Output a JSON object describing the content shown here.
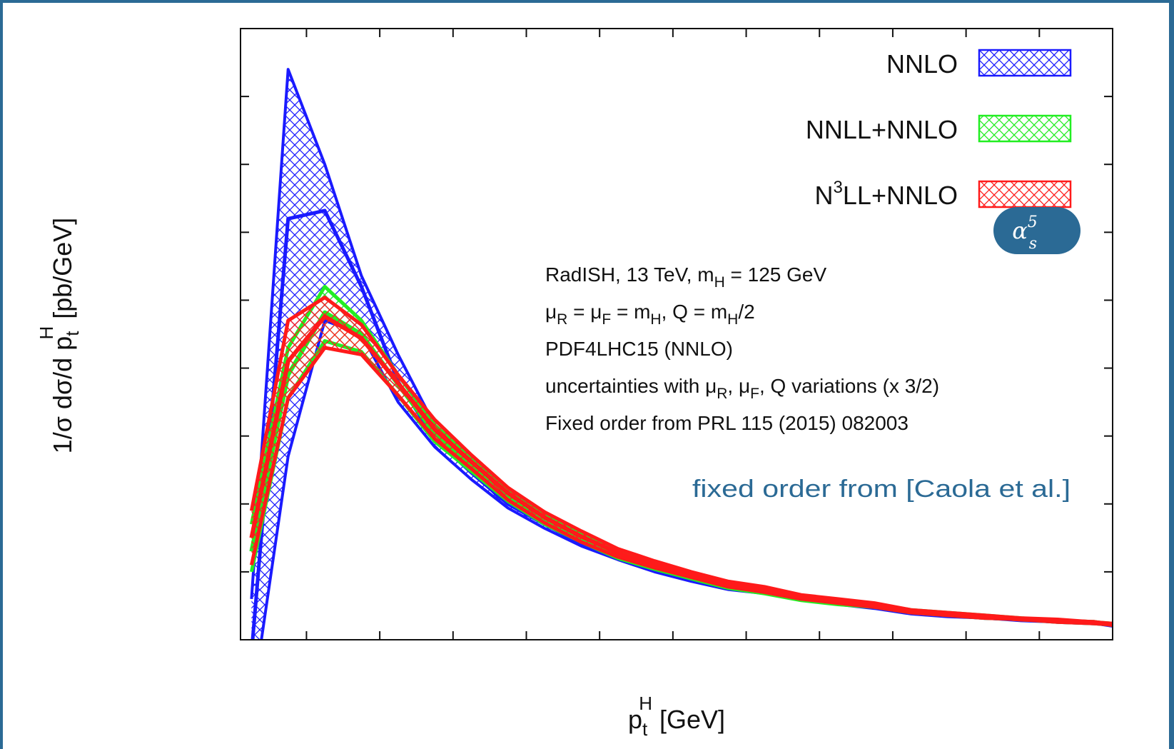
{
  "chart_data": {
    "type": "line",
    "xlabel": {
      "main": "p",
      "sub": "t",
      "sup": "H",
      "rest": " [GeV]"
    },
    "ylabel": {
      "main": "1/σ dσ/d p",
      "sub": "t",
      "sup": "H",
      "rest": " [pb/GeV]"
    },
    "xlim": [
      1,
      120
    ],
    "ylim": [
      0,
      0.045
    ],
    "xticks": [
      "10",
      "20",
      "30",
      "40",
      "50",
      "60",
      "70",
      "80",
      "90",
      "100",
      "110",
      "120"
    ],
    "yticks": [
      "0",
      "0.005",
      "0.01",
      "0.015",
      "0.02",
      "0.025",
      "0.03",
      "0.035",
      "0.04",
      "0.045"
    ],
    "legend_position": "top-right",
    "series": [
      {
        "name": "NNLO",
        "color": "#1a1aff",
        "x": [
          2.5,
          7.5,
          12.5,
          17.5,
          22.5,
          27.5,
          32.5,
          37.5,
          42.5,
          47.5,
          52.5,
          57.5,
          62.5,
          67.5,
          72.5,
          77.5,
          82.5,
          87.5,
          92.5,
          97.5,
          102.5,
          107.5,
          112.5,
          117.5,
          120
        ],
        "upper": [
          0.003,
          0.042,
          0.035,
          0.0268,
          0.021,
          0.0158,
          0.0128,
          0.0103,
          0.0088,
          0.0074,
          0.0063,
          0.0054,
          0.0047,
          0.004,
          0.0037,
          0.0031,
          0.0028,
          0.0025,
          0.0021,
          0.0019,
          0.0017,
          0.0015,
          0.0014,
          0.0012,
          0.0011
        ],
        "central": [
          -0.001,
          0.031,
          0.0316,
          0.026,
          0.019,
          0.0148,
          0.0123,
          0.01,
          0.0085,
          0.0071,
          0.0061,
          0.0052,
          0.0045,
          0.0038,
          0.0035,
          0.003,
          0.0027,
          0.0024,
          0.002,
          0.0018,
          0.0016,
          0.0015,
          0.0013,
          0.0012,
          0.0011
        ],
        "lower": [
          -0.005,
          0.0135,
          0.0235,
          0.0225,
          0.0175,
          0.0142,
          0.0118,
          0.0097,
          0.0082,
          0.0069,
          0.0059,
          0.005,
          0.0043,
          0.0037,
          0.0034,
          0.0029,
          0.0026,
          0.0023,
          0.0019,
          0.0017,
          0.0016,
          0.0014,
          0.0013,
          0.0012,
          0.001
        ]
      },
      {
        "name": "NNLL+NNLO",
        "color": "#22ee22",
        "x": [
          2.5,
          7.5,
          12.5,
          17.5,
          22.5,
          27.5,
          32.5,
          37.5,
          42.5,
          47.5,
          52.5,
          57.5,
          62.5,
          67.5,
          72.5,
          77.5,
          82.5,
          87.5,
          92.5,
          97.5,
          102.5,
          107.5,
          112.5,
          117.5,
          120
        ],
        "upper": [
          0.0085,
          0.0215,
          0.026,
          0.0235,
          0.0195,
          0.0158,
          0.0134,
          0.011,
          0.0092,
          0.0078,
          0.0066,
          0.0057,
          0.0049,
          0.0042,
          0.0038,
          0.0032,
          0.0029,
          0.0026,
          0.0022,
          0.002,
          0.0018,
          0.0016,
          0.0014,
          0.0013,
          0.0012
        ],
        "central": [
          0.0065,
          0.0195,
          0.0241,
          0.0225,
          0.0188,
          0.0152,
          0.0129,
          0.0106,
          0.0089,
          0.0075,
          0.0063,
          0.0055,
          0.0047,
          0.004,
          0.0036,
          0.0031,
          0.0028,
          0.0025,
          0.0021,
          0.0019,
          0.0017,
          0.0015,
          0.0014,
          0.0013,
          0.0011
        ],
        "lower": [
          0.005,
          0.0178,
          0.022,
          0.0212,
          0.018,
          0.0146,
          0.0124,
          0.0102,
          0.0085,
          0.0072,
          0.006,
          0.0052,
          0.0045,
          0.0038,
          0.0034,
          0.0029,
          0.0026,
          0.0024,
          0.002,
          0.0018,
          0.0016,
          0.0015,
          0.0013,
          0.0012,
          0.0011
        ]
      },
      {
        "name": "N³LL+NNLO",
        "color": "#ff1a1a",
        "x": [
          2.5,
          7.5,
          12.5,
          17.5,
          22.5,
          27.5,
          32.5,
          37.5,
          42.5,
          47.5,
          52.5,
          57.5,
          62.5,
          67.5,
          72.5,
          77.5,
          82.5,
          87.5,
          92.5,
          97.5,
          102.5,
          107.5,
          112.5,
          117.5,
          120
        ],
        "upper": [
          0.0095,
          0.0235,
          0.0252,
          0.0232,
          0.0195,
          0.0162,
          0.0136,
          0.0112,
          0.0094,
          0.008,
          0.0067,
          0.0058,
          0.005,
          0.0043,
          0.0039,
          0.0033,
          0.003,
          0.0027,
          0.0022,
          0.002,
          0.0018,
          0.0016,
          0.0015,
          0.0013,
          0.0012
        ],
        "central": [
          0.0075,
          0.0205,
          0.0238,
          0.0222,
          0.0189,
          0.0155,
          0.0131,
          0.0108,
          0.009,
          0.0076,
          0.0064,
          0.0055,
          0.0048,
          0.0041,
          0.0037,
          0.0031,
          0.0028,
          0.0025,
          0.0021,
          0.0019,
          0.0017,
          0.0015,
          0.0014,
          0.0013,
          0.0011
        ],
        "lower": [
          0.0055,
          0.0178,
          0.0215,
          0.021,
          0.018,
          0.0148,
          0.0126,
          0.0103,
          0.0086,
          0.0072,
          0.0061,
          0.0053,
          0.0046,
          0.0039,
          0.0035,
          0.003,
          0.0027,
          0.0024,
          0.002,
          0.0018,
          0.0016,
          0.0015,
          0.0013,
          0.0012,
          0.0011
        ]
      }
    ],
    "legend": [
      {
        "label": "NNLO",
        "color": "#1a1aff"
      },
      {
        "label": "NNLL+NNLO",
        "color": "#22ee22"
      },
      {
        "label": "LL+NNLO",
        "prefix": "N",
        "sup": "3",
        "color": "#ff1a1a"
      }
    ],
    "badge": {
      "base": "α",
      "sub": "s",
      "sup": "5",
      "color": "#2b6a95"
    },
    "info_lines": [
      "RadISH, 13 TeV, m_H = 125 GeV",
      "μ_R = μ_F = m_H, Q = m_H/2",
      "PDF4LHC15 (NNLO)",
      "uncertainties with μ_R, μ_F, Q variations (x 3/2)",
      "Fixed order from PRL 115 (2015) 082003"
    ],
    "note": {
      "text": "fixed order from [Caola et al.]",
      "color": "#2b6a95"
    }
  }
}
